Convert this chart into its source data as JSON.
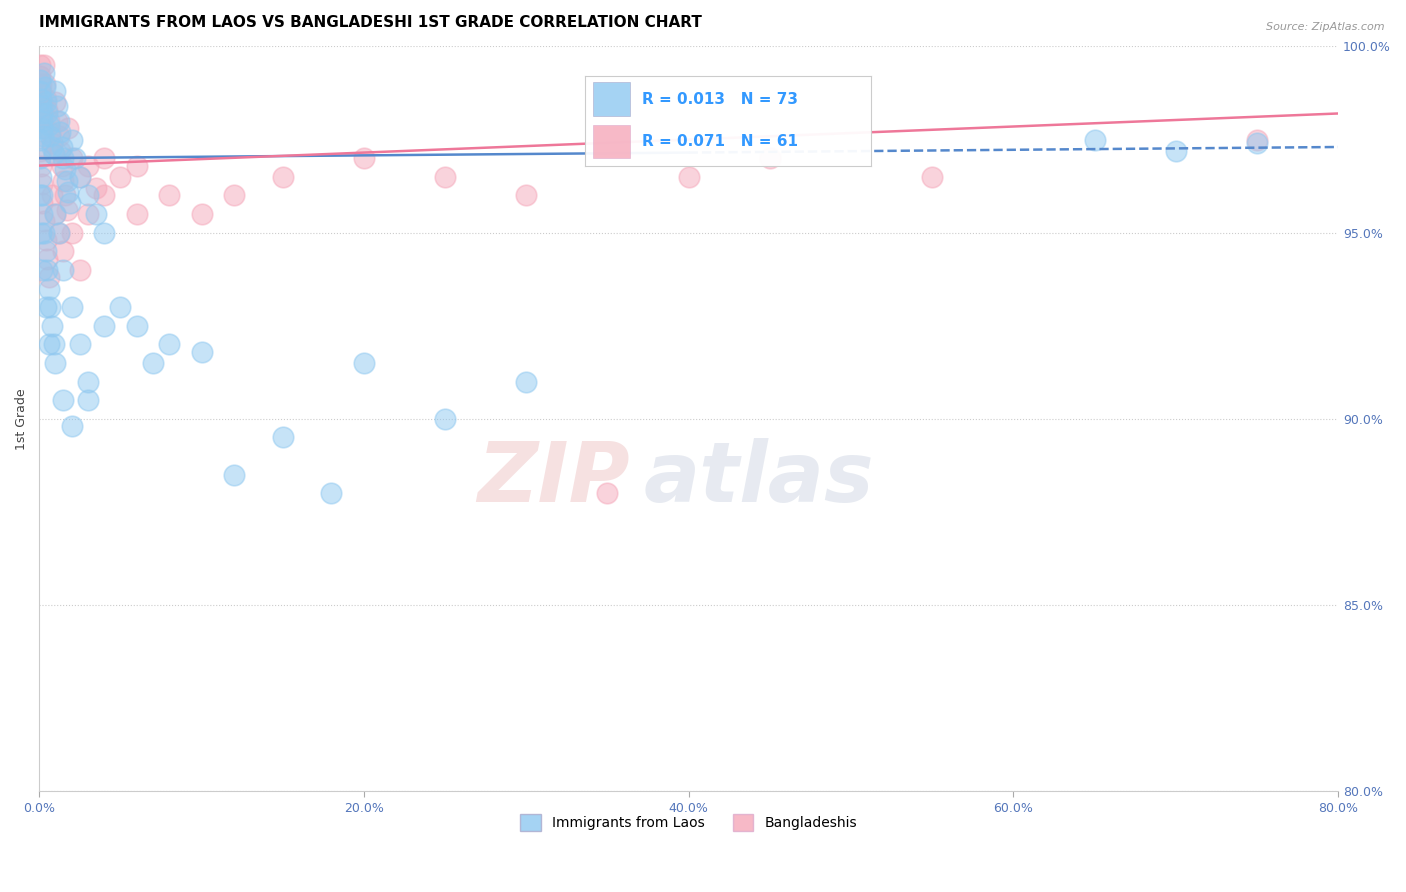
{
  "title": "IMMIGRANTS FROM LAOS VS BANGLADESHI 1ST GRADE CORRELATION CHART",
  "source": "Source: ZipAtlas.com",
  "ylabel": "1st Grade",
  "xlim": [
    0.0,
    80.0
  ],
  "ylim": [
    80.0,
    100.0
  ],
  "xticks": [
    0.0,
    20.0,
    40.0,
    60.0,
    80.0
  ],
  "yticks": [
    80.0,
    85.0,
    90.0,
    95.0,
    100.0
  ],
  "r_blue": 0.013,
  "n_blue": 73,
  "r_pink": 0.071,
  "n_pink": 61,
  "blue_color": "#8FC8F0",
  "pink_color": "#F5A8BA",
  "blue_line_color": "#5588CC",
  "pink_line_color": "#EE7799",
  "legend_r_color": "#3399FF",
  "blue_line_solid_end": 40.0,
  "blue_y0": 97.0,
  "blue_y1": 97.3,
  "pink_y0": 96.8,
  "pink_y1": 98.2,
  "blue_scatter": [
    [
      0.05,
      99.1
    ],
    [
      0.08,
      98.8
    ],
    [
      0.1,
      98.6
    ],
    [
      0.12,
      98.4
    ],
    [
      0.15,
      98.2
    ],
    [
      0.18,
      98.0
    ],
    [
      0.2,
      97.8
    ],
    [
      0.25,
      97.6
    ],
    [
      0.3,
      99.3
    ],
    [
      0.35,
      98.9
    ],
    [
      0.4,
      98.5
    ],
    [
      0.5,
      98.2
    ],
    [
      0.6,
      97.9
    ],
    [
      0.7,
      97.6
    ],
    [
      0.8,
      97.3
    ],
    [
      0.9,
      97.1
    ],
    [
      1.0,
      98.8
    ],
    [
      1.1,
      98.4
    ],
    [
      1.2,
      98.0
    ],
    [
      1.3,
      97.7
    ],
    [
      1.4,
      97.3
    ],
    [
      1.5,
      97.0
    ],
    [
      1.6,
      96.7
    ],
    [
      1.7,
      96.4
    ],
    [
      1.8,
      96.1
    ],
    [
      1.9,
      95.8
    ],
    [
      2.0,
      97.5
    ],
    [
      2.2,
      97.0
    ],
    [
      2.5,
      96.5
    ],
    [
      3.0,
      96.0
    ],
    [
      3.5,
      95.5
    ],
    [
      4.0,
      95.0
    ],
    [
      0.05,
      97.5
    ],
    [
      0.08,
      97.0
    ],
    [
      0.1,
      96.5
    ],
    [
      0.15,
      96.0
    ],
    [
      0.2,
      95.5
    ],
    [
      0.3,
      95.0
    ],
    [
      0.4,
      94.5
    ],
    [
      0.5,
      94.0
    ],
    [
      0.6,
      93.5
    ],
    [
      0.7,
      93.0
    ],
    [
      0.8,
      92.5
    ],
    [
      0.9,
      92.0
    ],
    [
      1.0,
      95.5
    ],
    [
      1.2,
      95.0
    ],
    [
      1.5,
      94.0
    ],
    [
      2.0,
      93.0
    ],
    [
      2.5,
      92.0
    ],
    [
      3.0,
      91.0
    ],
    [
      4.0,
      92.5
    ],
    [
      5.0,
      93.0
    ],
    [
      6.0,
      92.5
    ],
    [
      7.0,
      91.5
    ],
    [
      8.0,
      92.0
    ],
    [
      10.0,
      91.8
    ],
    [
      12.0,
      88.5
    ],
    [
      15.0,
      89.5
    ],
    [
      18.0,
      88.0
    ],
    [
      20.0,
      91.5
    ],
    [
      25.0,
      90.0
    ],
    [
      30.0,
      91.0
    ],
    [
      0.05,
      96.0
    ],
    [
      0.1,
      95.0
    ],
    [
      0.2,
      94.0
    ],
    [
      0.4,
      93.0
    ],
    [
      0.6,
      92.0
    ],
    [
      1.0,
      91.5
    ],
    [
      1.5,
      90.5
    ],
    [
      2.0,
      89.8
    ],
    [
      3.0,
      90.5
    ],
    [
      65.0,
      97.5
    ],
    [
      70.0,
      97.2
    ],
    [
      75.0,
      97.4
    ]
  ],
  "pink_scatter": [
    [
      0.05,
      99.5
    ],
    [
      0.08,
      99.2
    ],
    [
      0.1,
      99.0
    ],
    [
      0.12,
      98.8
    ],
    [
      0.15,
      98.5
    ],
    [
      0.18,
      98.3
    ],
    [
      0.2,
      98.0
    ],
    [
      0.25,
      97.8
    ],
    [
      0.3,
      99.5
    ],
    [
      0.35,
      99.0
    ],
    [
      0.4,
      98.6
    ],
    [
      0.5,
      98.3
    ],
    [
      0.6,
      98.0
    ],
    [
      0.7,
      97.7
    ],
    [
      0.8,
      97.4
    ],
    [
      0.9,
      97.1
    ],
    [
      1.0,
      98.5
    ],
    [
      1.1,
      98.0
    ],
    [
      1.2,
      97.6
    ],
    [
      1.3,
      97.2
    ],
    [
      1.4,
      96.8
    ],
    [
      1.5,
      96.4
    ],
    [
      1.6,
      96.0
    ],
    [
      1.7,
      95.6
    ],
    [
      1.8,
      97.8
    ],
    [
      2.0,
      97.0
    ],
    [
      2.5,
      96.5
    ],
    [
      3.0,
      96.8
    ],
    [
      3.5,
      96.2
    ],
    [
      4.0,
      97.0
    ],
    [
      5.0,
      96.5
    ],
    [
      6.0,
      96.8
    ],
    [
      0.05,
      97.2
    ],
    [
      0.1,
      96.8
    ],
    [
      0.15,
      96.3
    ],
    [
      0.2,
      95.8
    ],
    [
      0.3,
      95.3
    ],
    [
      0.4,
      94.8
    ],
    [
      0.5,
      94.3
    ],
    [
      0.6,
      93.8
    ],
    [
      0.8,
      96.0
    ],
    [
      1.0,
      95.5
    ],
    [
      1.2,
      95.0
    ],
    [
      1.5,
      94.5
    ],
    [
      2.0,
      95.0
    ],
    [
      2.5,
      94.0
    ],
    [
      3.0,
      95.5
    ],
    [
      4.0,
      96.0
    ],
    [
      6.0,
      95.5
    ],
    [
      8.0,
      96.0
    ],
    [
      10.0,
      95.5
    ],
    [
      12.0,
      96.0
    ],
    [
      15.0,
      96.5
    ],
    [
      20.0,
      97.0
    ],
    [
      25.0,
      96.5
    ],
    [
      30.0,
      96.0
    ],
    [
      35.0,
      88.0
    ],
    [
      40.0,
      96.5
    ],
    [
      45.0,
      97.0
    ],
    [
      55.0,
      96.5
    ],
    [
      75.0,
      97.5
    ]
  ]
}
